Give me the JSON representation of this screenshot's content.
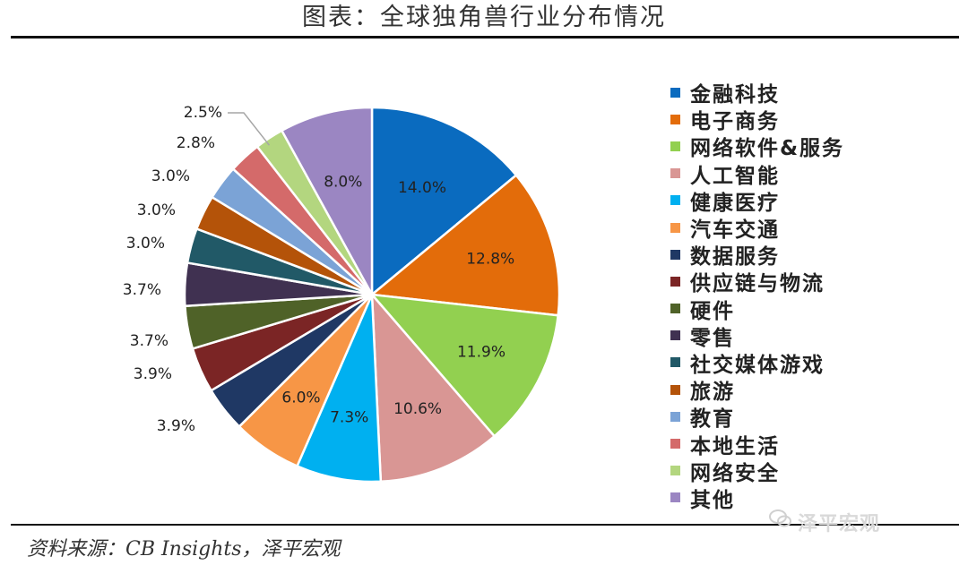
{
  "header": {
    "title": "图表：全球独角兽行业分布情况"
  },
  "footer": {
    "source": "资料来源：CB Insights，泽平宏观",
    "watermark": "泽平宏观"
  },
  "chart_data": {
    "type": "pie",
    "title": "图表：全球独角兽行业分布情况",
    "legend_position": "right",
    "start_angle": "12 o'clock",
    "direction": "clockwise",
    "unit": "%",
    "slices": [
      {
        "name": "金融科技",
        "value": 14.0,
        "label": "14.0%",
        "color": "#0a6bbf"
      },
      {
        "name": "电子商务",
        "value": 12.8,
        "label": "12.8%",
        "color": "#e36c0a"
      },
      {
        "name": "网络软件&服务",
        "value": 11.9,
        "label": "11.9%",
        "color": "#92d050"
      },
      {
        "name": "人工智能",
        "value": 10.6,
        "label": "10.6%",
        "color": "#d99694"
      },
      {
        "name": "健康医疗",
        "value": 7.3,
        "label": "7.3%",
        "color": "#00b0f0"
      },
      {
        "name": "汽车交通",
        "value": 6.0,
        "label": "6.0%",
        "color": "#f79646"
      },
      {
        "name": "数据服务",
        "value": 3.9,
        "label": "3.9%",
        "color": "#1f3864"
      },
      {
        "name": "供应链与物流",
        "value": 3.9,
        "label": "3.9%",
        "color": "#7b2525"
      },
      {
        "name": "硬件",
        "value": 3.7,
        "label": "3.7%",
        "color": "#4f6228"
      },
      {
        "name": "零售",
        "value": 3.7,
        "label": "3.7%",
        "color": "#403151"
      },
      {
        "name": "社交媒体游戏",
        "value": 3.0,
        "label": "3.0%",
        "color": "#215967"
      },
      {
        "name": "旅游",
        "value": 3.0,
        "label": "3.0%",
        "color": "#b45309"
      },
      {
        "name": "教育",
        "value": 3.0,
        "label": "3.0%",
        "color": "#7ba3d6"
      },
      {
        "name": "本地生活",
        "value": 2.8,
        "label": "2.8%",
        "color": "#d46a6a"
      },
      {
        "name": "网络安全",
        "value": 2.5,
        "label": "2.5%",
        "color": "#b3d67f"
      },
      {
        "name": "其他",
        "value": 8.0,
        "label": "8.0%",
        "color": "#9b86c2"
      }
    ]
  }
}
